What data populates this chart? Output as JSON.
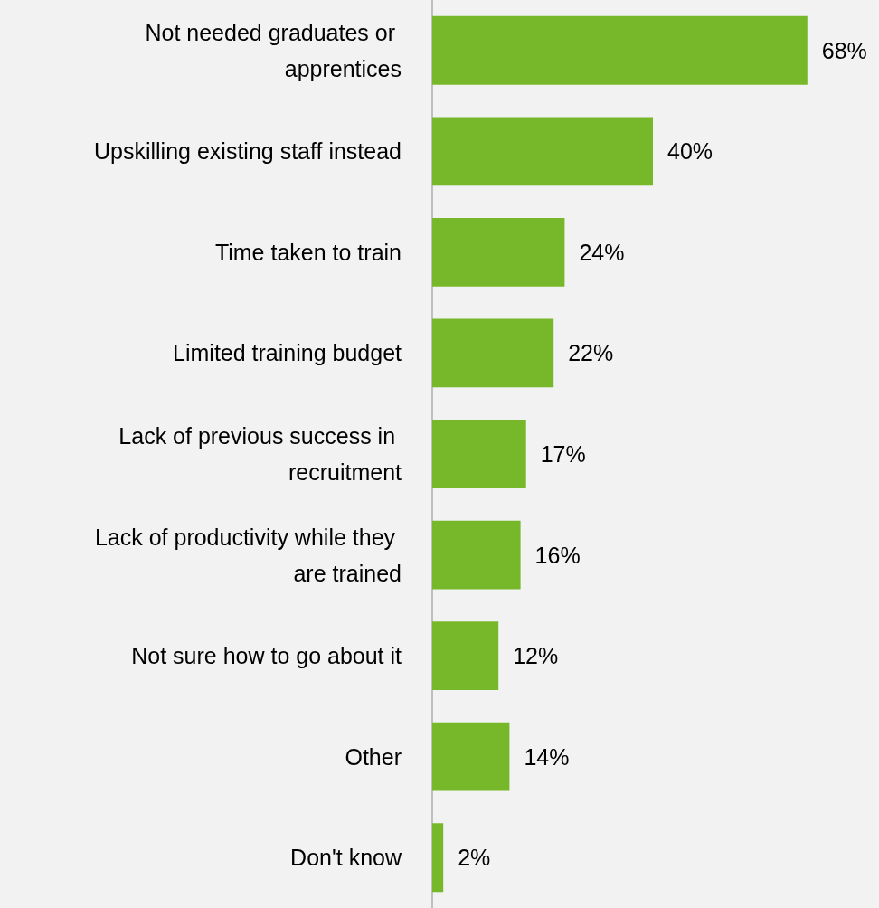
{
  "chart_data": {
    "type": "bar",
    "orientation": "horizontal",
    "categories": [
      "Not needed graduates or apprentices",
      "Upskilling existing staff instead",
      "Time taken to train",
      "Limited training budget",
      "Lack of previous success in recruitment",
      "Lack of productivity while they are trained",
      "Not sure how to go about it",
      "Other",
      "Don't know"
    ],
    "values": [
      68,
      40,
      24,
      22,
      17,
      16,
      12,
      14,
      2
    ],
    "value_labels": [
      "68%",
      "40%",
      "24%",
      "22%",
      "17%",
      "16%",
      "12%",
      "14%",
      "2%"
    ],
    "color": "#76b82a"
  }
}
